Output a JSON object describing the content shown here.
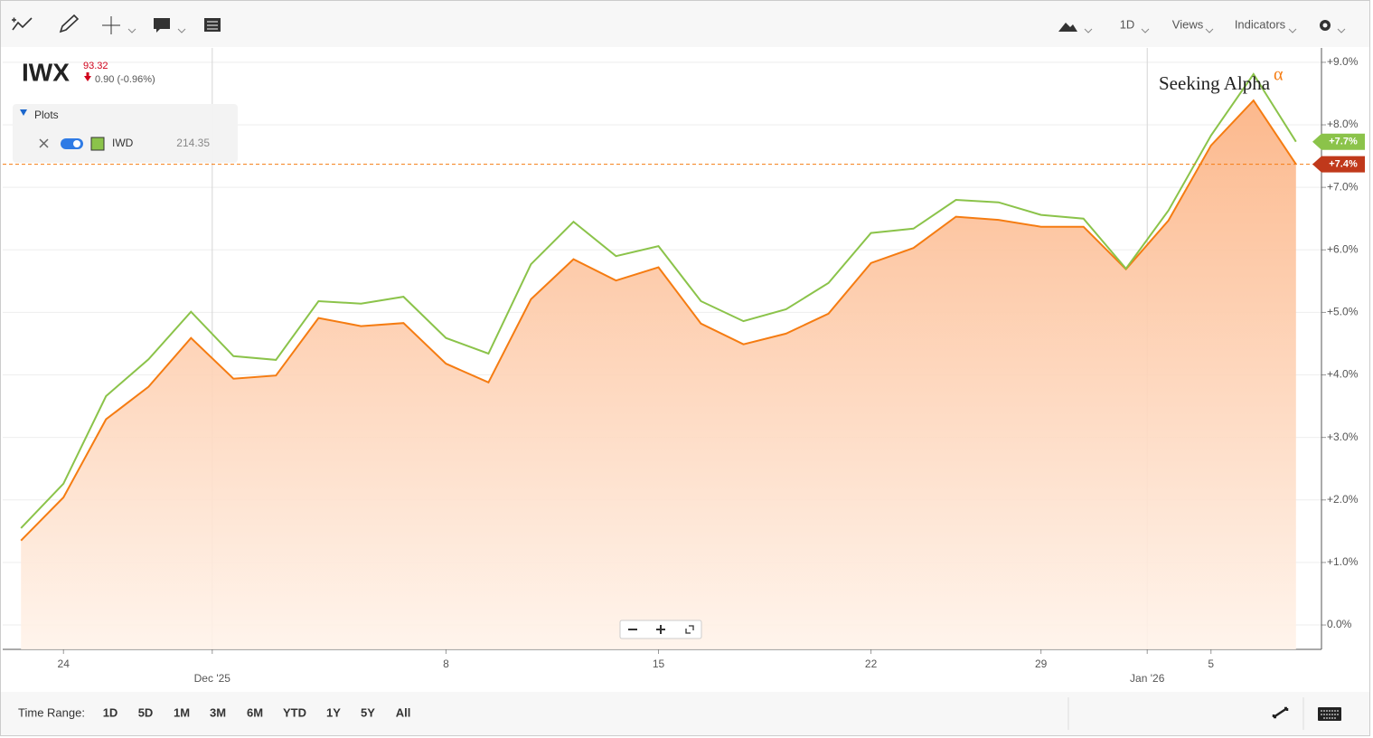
{
  "toolbar": {
    "interval": "1D",
    "views": "Views",
    "indicators": "Indicators"
  },
  "quote": {
    "price": "93.32",
    "change": "0.90 (-0.96%)"
  },
  "plots": {
    "title": "Plots",
    "items": [
      {
        "price": "214.35"
      }
    ]
  },
  "watermark": {
    "text": "Seeking Alpha",
    "symbol": "α"
  },
  "time_range": {
    "label": "Time Range:",
    "options": [
      "1D",
      "5D",
      "1M",
      "3M",
      "6M",
      "YTD",
      "1Y",
      "5Y",
      "All"
    ]
  },
  "chart_data": {
    "type": "line",
    "categories": [
      null,
      "24",
      null,
      null,
      null,
      null,
      null,
      null,
      null,
      null,
      "8",
      null,
      null,
      null,
      null,
      "15",
      null,
      null,
      null,
      null,
      "22",
      null,
      null,
      null,
      "29",
      null,
      null,
      null,
      "5",
      null,
      null
    ],
    "xticks_months": [
      {
        "value": 4.5,
        "label": "Dec '25"
      },
      {
        "value": 26.5,
        "label": "Jan '26"
      }
    ],
    "xlim": [
      -0.43,
      30.6
    ],
    "ylim": [
      -0.39,
      9.23
    ],
    "yticks": [
      {
        "value": 0,
        "label": "0.0%"
      },
      {
        "value": 1,
        "label": "+1.0%"
      },
      {
        "value": 2,
        "label": "+2.0%"
      },
      {
        "value": 3,
        "label": "+3.0%"
      },
      {
        "value": 4,
        "label": "+4.0%"
      },
      {
        "value": 5,
        "label": "+5.0%"
      },
      {
        "value": 6,
        "label": "+6.0%"
      },
      {
        "value": 7,
        "label": "+7.0%"
      },
      {
        "value": 8,
        "label": "+8.0%"
      },
      {
        "value": 9,
        "label": "+9.0%"
      }
    ],
    "grid": true,
    "series": [
      {
        "name": "IWX",
        "color": "#f57c12",
        "badge_color": "#c0391b",
        "area": true,
        "last_line": true,
        "values": [
          1.35,
          2.04,
          3.29,
          3.81,
          4.59,
          3.94,
          3.99,
          4.91,
          4.78,
          4.83,
          4.18,
          3.88,
          5.21,
          5.85,
          5.51,
          5.72,
          4.82,
          4.49,
          4.66,
          4.98,
          5.79,
          6.03,
          6.53,
          6.48,
          6.37,
          6.37,
          5.69,
          6.47,
          7.67,
          8.39,
          7.37
        ],
        "value_labels": [
          null,
          null,
          null,
          null,
          null,
          null,
          null,
          null,
          null,
          null,
          null,
          null,
          null,
          null,
          null,
          null,
          null,
          null,
          null,
          null,
          null,
          null,
          null,
          null,
          null,
          null,
          null,
          null,
          null,
          null,
          "+7.4%"
        ]
      },
      {
        "name": "IWD",
        "color": "#8bc34a",
        "badge_color": "#8bc34a",
        "area": false,
        "last_line": false,
        "values": [
          1.55,
          2.26,
          3.66,
          4.25,
          5.01,
          4.3,
          4.24,
          5.18,
          5.14,
          5.25,
          4.59,
          4.34,
          5.77,
          6.45,
          5.9,
          6.06,
          5.18,
          4.86,
          5.05,
          5.47,
          6.27,
          6.34,
          6.8,
          6.76,
          6.56,
          6.5,
          5.7,
          6.63,
          7.83,
          8.81,
          7.73
        ],
        "value_labels": [
          null,
          null,
          null,
          null,
          null,
          null,
          null,
          null,
          null,
          null,
          null,
          null,
          null,
          null,
          null,
          null,
          null,
          null,
          null,
          null,
          null,
          null,
          null,
          null,
          null,
          null,
          null,
          null,
          null,
          null,
          "+7.7%"
        ]
      }
    ]
  }
}
